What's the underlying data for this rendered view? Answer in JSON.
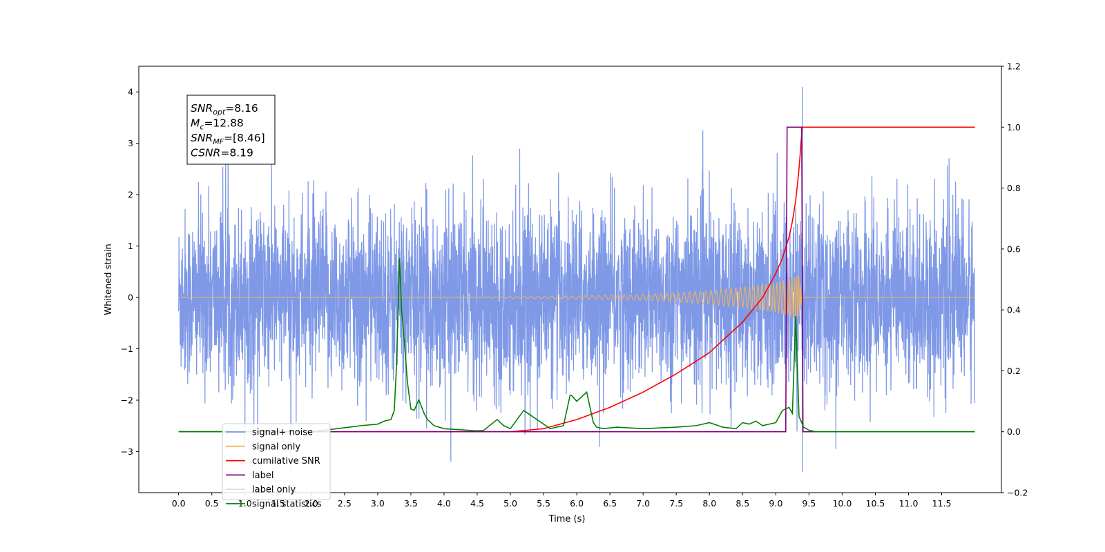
{
  "chart_data": {
    "type": "line",
    "title": "",
    "xlabel": "Time (s)",
    "ylabel": "Whitened strain",
    "xlim": [
      -0.6,
      12.4
    ],
    "ylim": [
      -3.8,
      4.5
    ],
    "y2lim": [
      -0.2,
      1.2
    ],
    "x_ticks": [
      "0.0",
      "0.5",
      "1.0",
      "1.5",
      "2.0",
      "2.5",
      "3.0",
      "3.5",
      "4.0",
      "4.5",
      "5.0",
      "5.5",
      "6.0",
      "6.5",
      "7.0",
      "7.5",
      "8.0",
      "8.5",
      "9.0",
      "9.5",
      "10.0",
      "10.5",
      "11.0",
      "11.5"
    ],
    "y_ticks": [
      "4",
      "3",
      "2",
      "1",
      "0",
      "−1",
      "−2",
      "−3"
    ],
    "y2_ticks": [
      "1.2",
      "1.0",
      "0.8",
      "0.6",
      "0.4",
      "0.2",
      "0.0",
      "−0.2"
    ],
    "grid": false,
    "legend_position": "lower-left",
    "annotation": [
      {
        "name": "SNR",
        "sub": "opt",
        "value": "=8.16"
      },
      {
        "name": "M",
        "sub": "c",
        "value": "=12.88"
      },
      {
        "name": "SNR",
        "sub": "MF",
        "value": "=[8.46]"
      },
      {
        "name": "CSNR",
        "sub": "",
        "value": "=8.19"
      }
    ],
    "series": [
      {
        "name": "signal+ noise",
        "color": "#7893e6",
        "axis": "left",
        "values": "noisy strain, approx. -3.4 to 4.1 over t = 0 to 12"
      },
      {
        "name": "signal only",
        "color": "#f5b553",
        "axis": "left",
        "envelope": {
          "x": [
            0,
            4.5,
            6.0,
            7.0,
            7.5,
            8.0,
            8.5,
            8.8,
            9.0,
            9.2,
            9.35,
            9.4
          ],
          "amp": [
            0.0,
            0.01,
            0.03,
            0.06,
            0.09,
            0.13,
            0.2,
            0.25,
            0.29,
            0.36,
            0.45,
            0.0
          ]
        }
      },
      {
        "name": "cumilative SNR",
        "color": "#ff0000",
        "axis": "right",
        "x": [
          0.0,
          5.0,
          5.5,
          6.0,
          6.5,
          7.0,
          7.5,
          8.0,
          8.5,
          8.8,
          9.0,
          9.1,
          9.2,
          9.25,
          9.3,
          9.35,
          9.38,
          9.4,
          12.0
        ],
        "y": [
          0.0,
          0.0,
          0.01,
          0.04,
          0.08,
          0.13,
          0.19,
          0.26,
          0.36,
          0.44,
          0.52,
          0.57,
          0.64,
          0.69,
          0.76,
          0.86,
          0.95,
          1.0,
          1.0
        ]
      },
      {
        "name": "label",
        "color": "#800080",
        "axis": "right",
        "x": [
          0.0,
          9.15,
          9.17,
          9.39,
          9.41,
          12.0
        ],
        "y": [
          0.0,
          0.0,
          1.0,
          1.0,
          0.0,
          0.0
        ]
      },
      {
        "name": "label only",
        "color": "#dddddd",
        "axis": "right",
        "x": [],
        "y": []
      },
      {
        "name": "signal statistics",
        "color": "#008000",
        "axis": "right",
        "x": [
          0.0,
          1.0,
          2.0,
          2.5,
          2.75,
          3.0,
          3.1,
          3.2,
          3.25,
          3.28,
          3.33,
          3.36,
          3.4,
          3.45,
          3.5,
          3.55,
          3.62,
          3.7,
          3.75,
          3.85,
          4.0,
          4.5,
          4.6,
          4.8,
          4.9,
          5.0,
          5.2,
          5.4,
          5.6,
          5.8,
          5.9,
          5.92,
          6.0,
          6.1,
          6.15,
          6.2,
          6.25,
          6.3,
          6.4,
          6.6,
          7.0,
          7.5,
          7.8,
          8.0,
          8.2,
          8.4,
          8.5,
          8.6,
          8.7,
          8.8,
          9.0,
          9.1,
          9.2,
          9.25,
          9.3,
          9.35,
          9.42,
          9.5,
          9.6,
          12.0
        ],
        "y": [
          0.0,
          0.0,
          0.0,
          0.013,
          0.02,
          0.025,
          0.035,
          0.04,
          0.07,
          0.2,
          0.57,
          0.4,
          0.3,
          0.16,
          0.075,
          0.07,
          0.105,
          0.06,
          0.04,
          0.02,
          0.01,
          0.003,
          0.005,
          0.04,
          0.02,
          0.01,
          0.07,
          0.04,
          0.01,
          0.02,
          0.12,
          0.12,
          0.1,
          0.12,
          0.13,
          0.08,
          0.03,
          0.015,
          0.01,
          0.015,
          0.01,
          0.015,
          0.02,
          0.03,
          0.015,
          0.01,
          0.03,
          0.025,
          0.035,
          0.02,
          0.03,
          0.07,
          0.08,
          0.06,
          0.38,
          0.05,
          0.015,
          0.005,
          0.0,
          0.0
        ]
      }
    ]
  }
}
